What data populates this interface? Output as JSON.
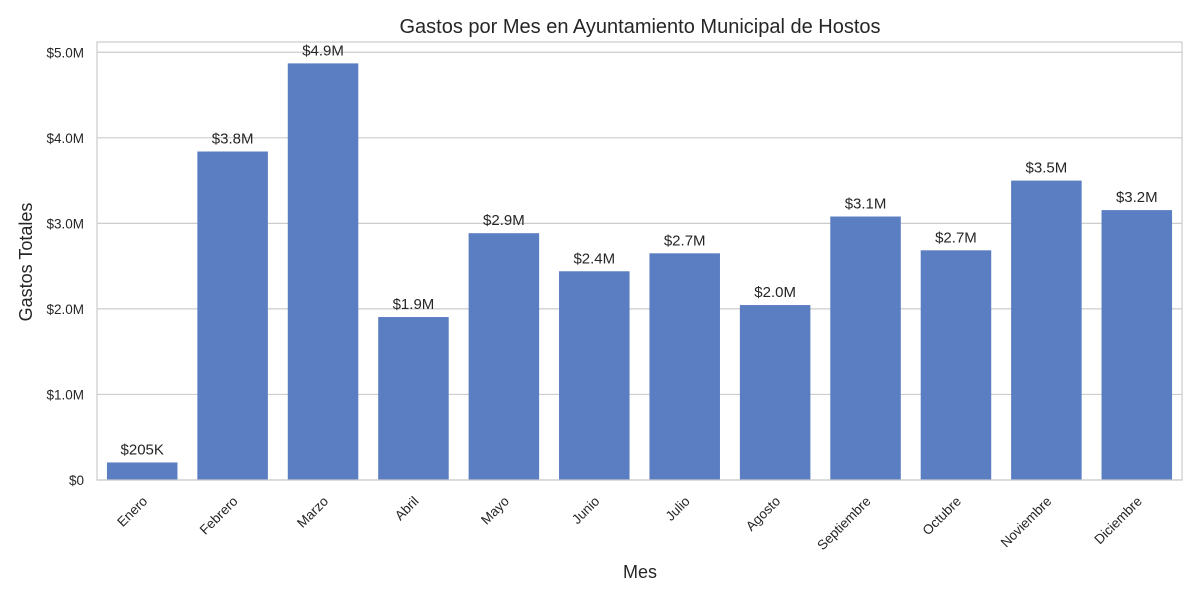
{
  "chart_data": {
    "type": "bar",
    "title": "Gastos por Mes en Ayuntamiento Municipal de Hostos",
    "xlabel": "Mes",
    "ylabel": "Gastos Totales",
    "categories": [
      "Enero",
      "Febrero",
      "Marzo",
      "Abril",
      "Mayo",
      "Junio",
      "Julio",
      "Agosto",
      "Septiembre",
      "Octubre",
      "Noviembre",
      "Diciembre"
    ],
    "values": [
      205000,
      3840000,
      4870000,
      1905000,
      2885000,
      2440000,
      2650000,
      2045000,
      3080000,
      2685000,
      3500000,
      3155000
    ],
    "data_labels": [
      "$205K",
      "$3.8M",
      "$4.9M",
      "$1.9M",
      "$2.9M",
      "$2.4M",
      "$2.7M",
      "$2.0M",
      "$3.1M",
      "$2.7M",
      "$3.5M",
      "$3.2M"
    ],
    "yticks": [
      0,
      1000000,
      2000000,
      3000000,
      4000000,
      5000000
    ],
    "ytick_labels": [
      "$0",
      "$1.0M",
      "$2.0M",
      "$3.0M",
      "$4.0M",
      "$5.0M"
    ],
    "ylim": [
      0,
      5120000
    ],
    "grid": "horizontal",
    "colors": {
      "bar": "#5b7ec2",
      "grid": "#cccccc",
      "frame": "#cccccc",
      "text": "#262626"
    }
  }
}
